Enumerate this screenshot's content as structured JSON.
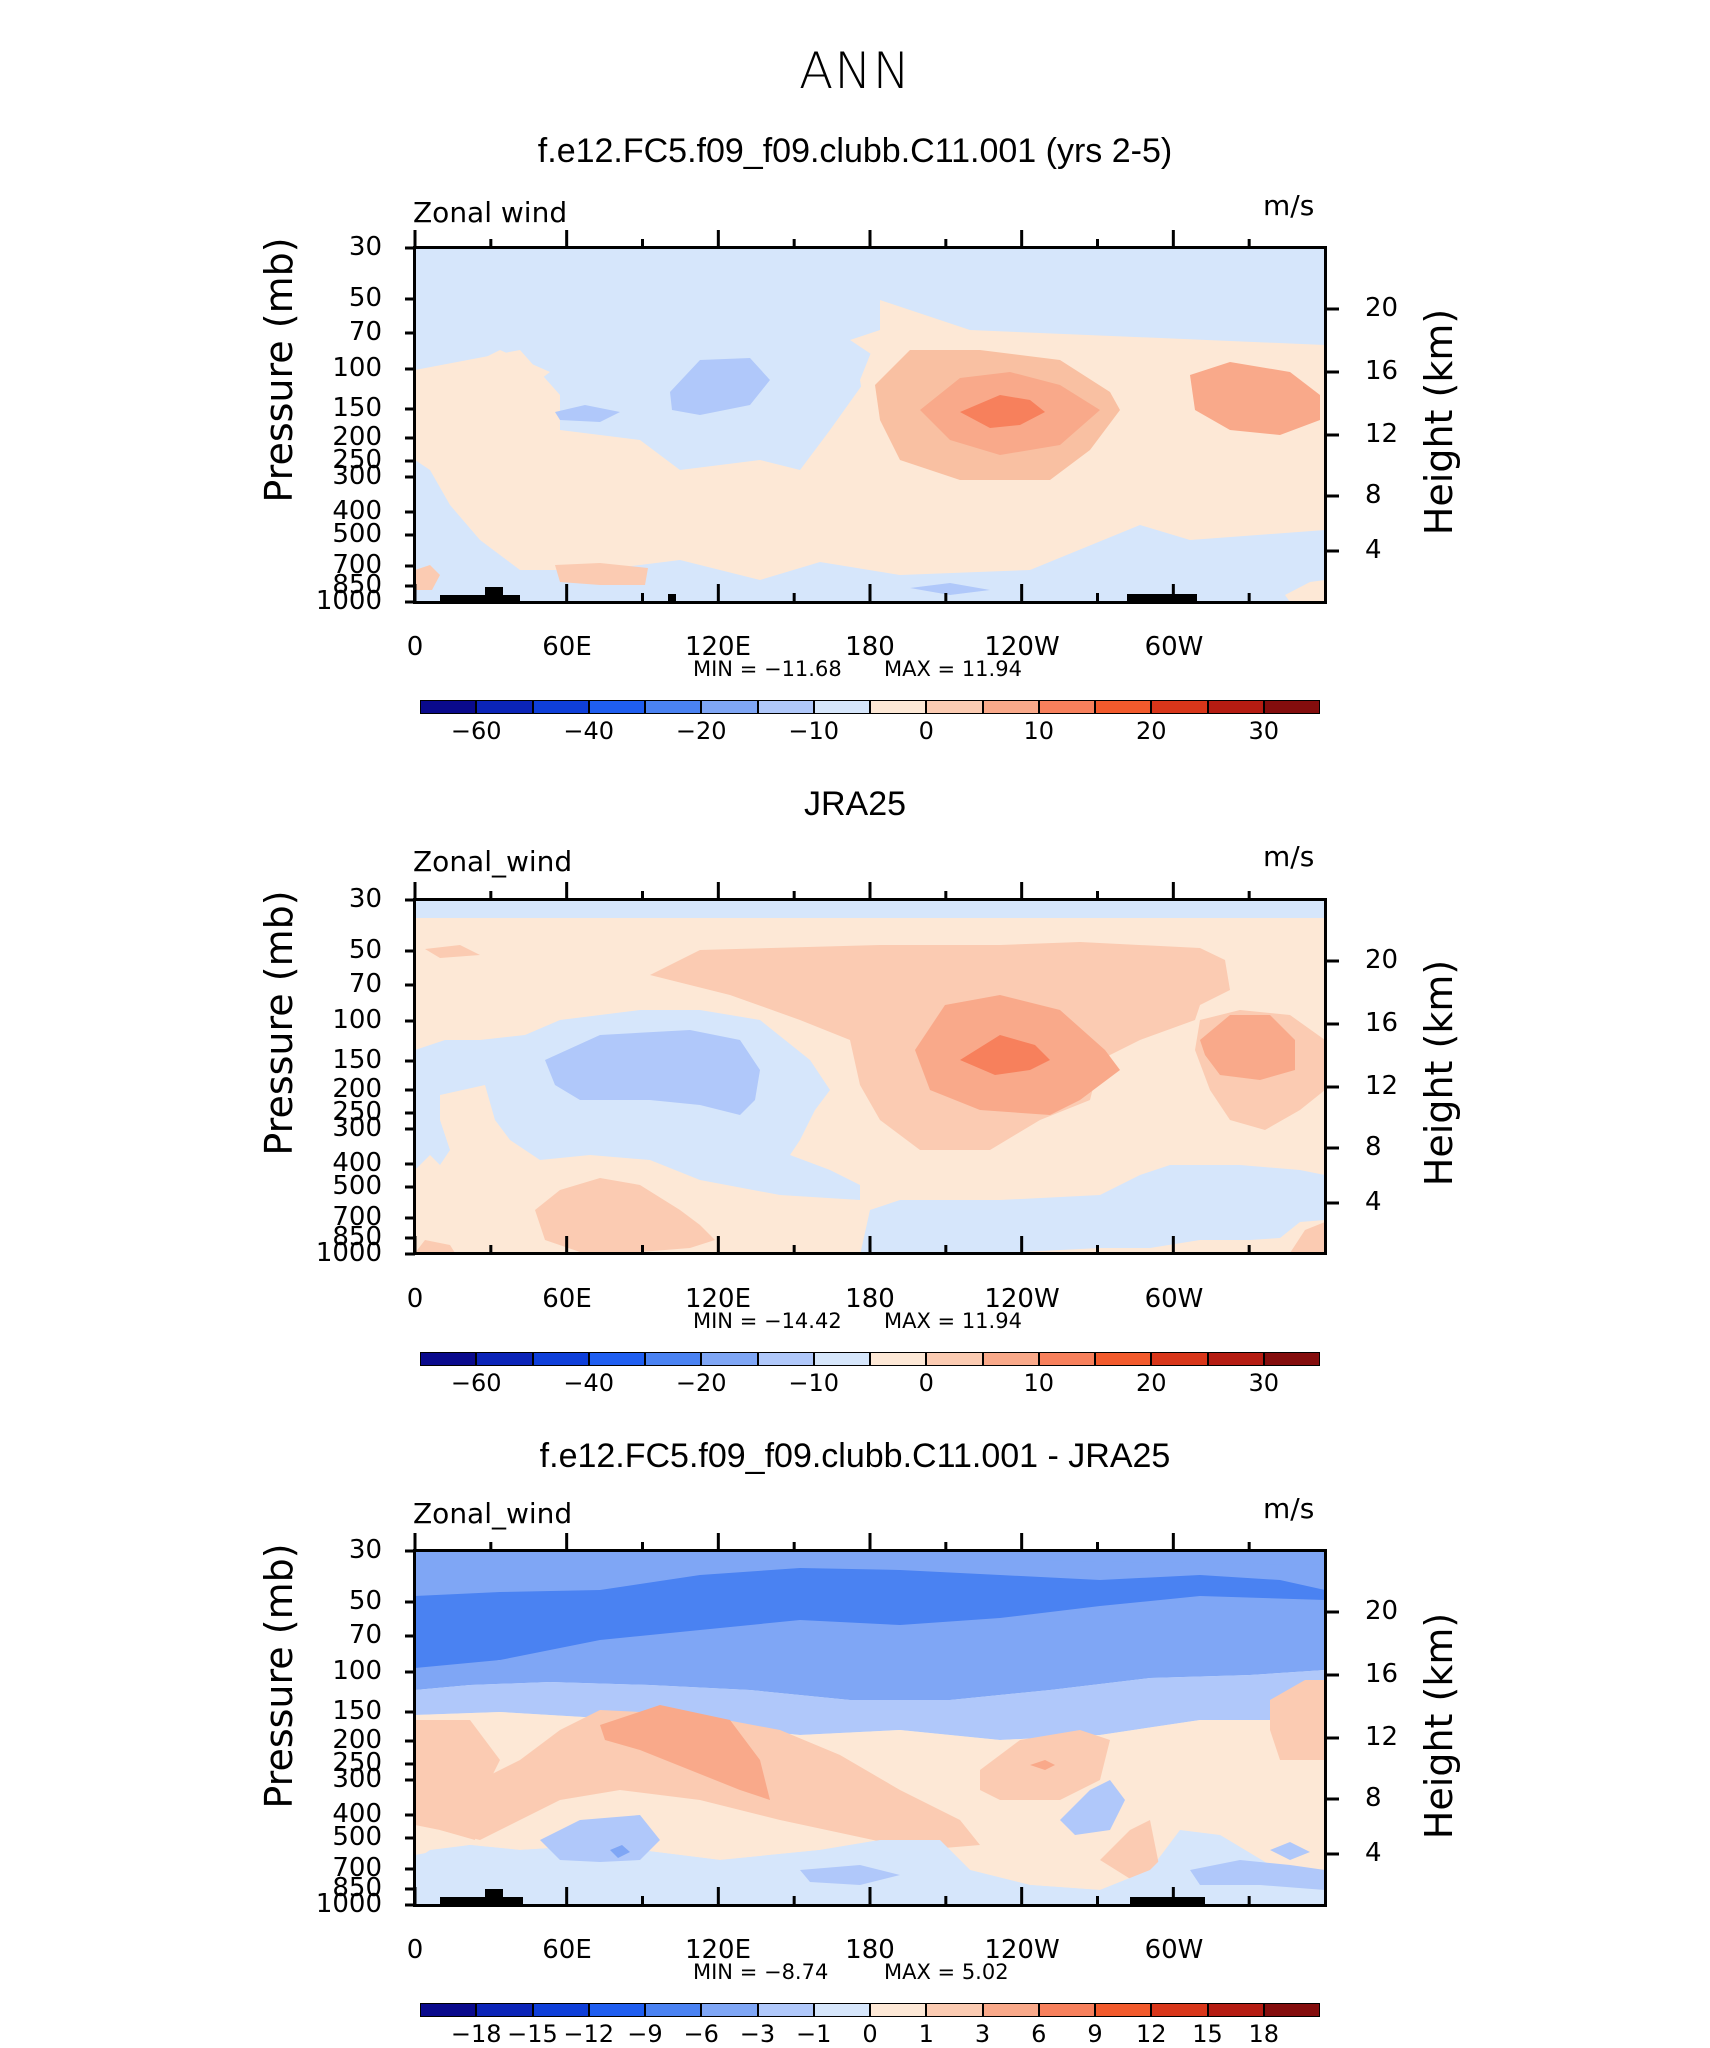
{
  "page_title": "ANN",
  "chart_data": [
    {
      "type": "contour",
      "title": "f.e12.FC5.f09_f09.clubb.C11.001 (yrs 2-5)",
      "variable_label": "Zonal wind",
      "units": "m/s",
      "ylabel": "Pressure (mb)",
      "ylabel_right": "Height (km)",
      "x_ticks": [
        "0",
        "60E",
        "120E",
        "180",
        "120W",
        "60W"
      ],
      "y_ticks": [
        "30",
        "50",
        "70",
        "100",
        "150",
        "200",
        "250",
        "300",
        "400",
        "500",
        "700",
        "850",
        "1000"
      ],
      "y_right_ticks": [
        "20",
        "16",
        "12",
        "8",
        "4"
      ],
      "min_text": "MIN =  −11.68",
      "max_text": "MAX =   11.94",
      "min": -11.68,
      "max": 11.94,
      "colorbar_ticks": [
        "−60",
        "−40",
        "−20",
        "−10",
        "0",
        "10",
        "20",
        "30"
      ]
    },
    {
      "type": "contour",
      "title": "JRA25",
      "variable_label": "Zonal_wind",
      "units": "m/s",
      "ylabel": "Pressure (mb)",
      "ylabel_right": "Height (km)",
      "x_ticks": [
        "0",
        "60E",
        "120E",
        "180",
        "120W",
        "60W"
      ],
      "y_ticks": [
        "30",
        "50",
        "70",
        "100",
        "150",
        "200",
        "250",
        "300",
        "400",
        "500",
        "700",
        "850",
        "1000"
      ],
      "y_right_ticks": [
        "20",
        "16",
        "12",
        "8",
        "4"
      ],
      "min_text": "MIN =  −14.42",
      "max_text": "MAX =   11.94",
      "min": -14.42,
      "max": 11.94,
      "colorbar_ticks": [
        "−60",
        "−40",
        "−20",
        "−10",
        "0",
        "10",
        "20",
        "30"
      ]
    },
    {
      "type": "contour",
      "title": "f.e12.FC5.f09_f09.clubb.C11.001 - JRA25",
      "variable_label": "Zonal_wind",
      "units": "m/s",
      "ylabel": "Pressure (mb)",
      "ylabel_right": "Height (km)",
      "x_ticks": [
        "0",
        "60E",
        "120E",
        "180",
        "120W",
        "60W"
      ],
      "y_ticks": [
        "30",
        "50",
        "70",
        "100",
        "150",
        "200",
        "250",
        "300",
        "400",
        "500",
        "700",
        "850",
        "1000"
      ],
      "y_right_ticks": [
        "20",
        "16",
        "12",
        "8",
        "4"
      ],
      "min_text": "MIN =   −8.74",
      "max_text": "MAX =    5.02",
      "min": -8.74,
      "max": 5.02,
      "colorbar_ticks": [
        "−18",
        "−15",
        "−12",
        "−9",
        "−6",
        "−3",
        "−1",
        "0",
        "1",
        "3",
        "6",
        "9",
        "12",
        "15",
        "18"
      ]
    }
  ],
  "colors": {
    "palette": [
      "#0a0a8c",
      "#0b24b8",
      "#0f3fd9",
      "#1f5ef0",
      "#4a82f2",
      "#7fa6f5",
      "#b0c8fa",
      "#d6e6fb",
      "#fde8d6",
      "#fbcbb2",
      "#f9a98a",
      "#f7805c",
      "#f25a2c",
      "#d8361a",
      "#b51c12",
      "#840d0d"
    ]
  }
}
